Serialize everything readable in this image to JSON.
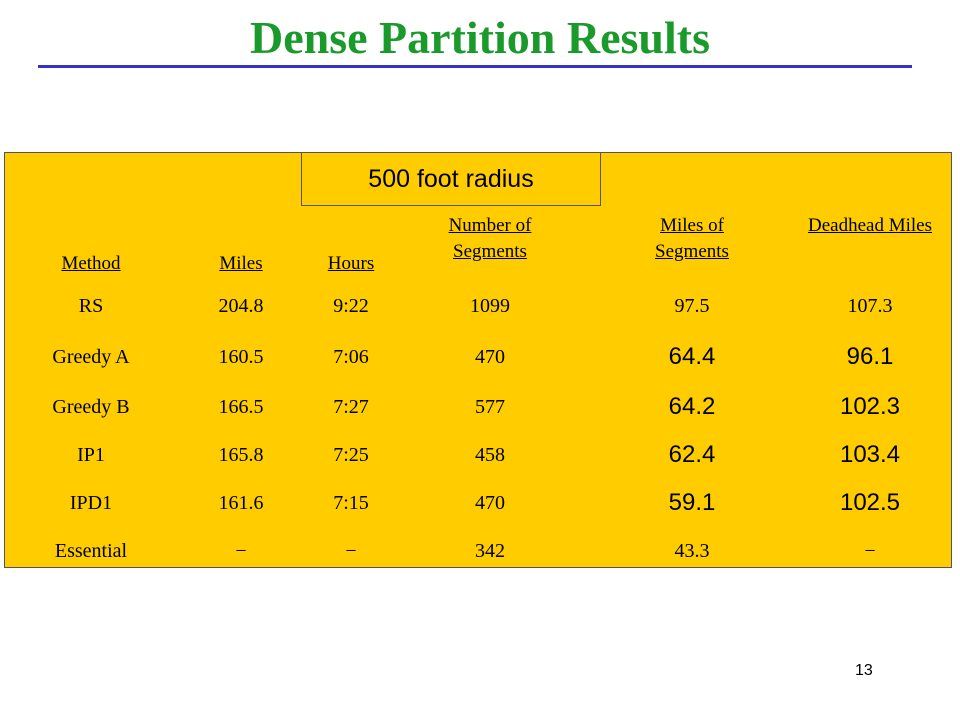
{
  "slide": {
    "title": "Dense Partition Results",
    "page_number": "13"
  },
  "table": {
    "group_header": "500 foot radius",
    "headers": {
      "method": "Method",
      "miles": "Miles",
      "hours": "Hours",
      "segments_count": "Number of Segments",
      "segments_miles": "Miles of Segments",
      "deadhead": "Deadhead Miles"
    },
    "rows": [
      {
        "method": "RS",
        "miles": "204.8",
        "hours": "9:22",
        "segments": "1099",
        "seg_miles": "97.5",
        "deadhead": "107.3"
      },
      {
        "method": "Greedy A",
        "miles": "160.5",
        "hours": "7:06",
        "segments": "470",
        "seg_miles": "64.4",
        "deadhead": "96.1"
      },
      {
        "method": "Greedy B",
        "miles": "166.5",
        "hours": "7:27",
        "segments": "577",
        "seg_miles": "64.2",
        "deadhead": "102.3"
      },
      {
        "method": "IP1",
        "miles": "165.8",
        "hours": "7:25",
        "segments": "458",
        "seg_miles": "62.4",
        "deadhead": "103.4"
      },
      {
        "method": "IPD1",
        "miles": "161.6",
        "hours": "7:15",
        "segments": "470",
        "seg_miles": "59.1",
        "deadhead": "102.5"
      },
      {
        "method": "Essential",
        "miles": "−",
        "hours": "−",
        "segments": "342",
        "seg_miles": "43.3",
        "deadhead": "−"
      }
    ]
  },
  "colors": {
    "title": "#1a9a2a",
    "rule": "#3333cc",
    "table_background": "#ffcc00"
  }
}
